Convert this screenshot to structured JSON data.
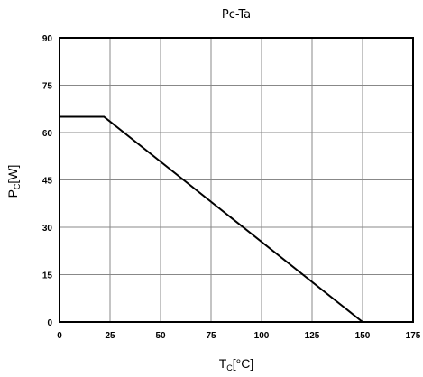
{
  "chart_data": {
    "type": "line",
    "title": "Pc-Ta",
    "xlabel": {
      "main": "T",
      "sub": "C",
      "suffix": "[°C]"
    },
    "ylabel": {
      "main": "P",
      "sub": "C",
      "suffix": "[W]"
    },
    "xlim": [
      0,
      175
    ],
    "ylim": [
      0,
      90
    ],
    "xticks": [
      0,
      25,
      50,
      75,
      100,
      125,
      150,
      175
    ],
    "yticks": [
      0,
      15,
      30,
      45,
      60,
      75,
      90
    ],
    "xtick_labels": [
      "0",
      "25",
      "50",
      "75",
      "100",
      "125",
      "150",
      "175"
    ],
    "ytick_labels": [
      "0",
      "15",
      "30",
      "45",
      "60",
      "75",
      "90"
    ],
    "grid": true,
    "legend": "none",
    "line_color": "#000000",
    "grid_color": "#888888",
    "series": [
      {
        "x": [
          0,
          22,
          150
        ],
        "y": [
          65,
          65,
          0
        ]
      }
    ]
  }
}
